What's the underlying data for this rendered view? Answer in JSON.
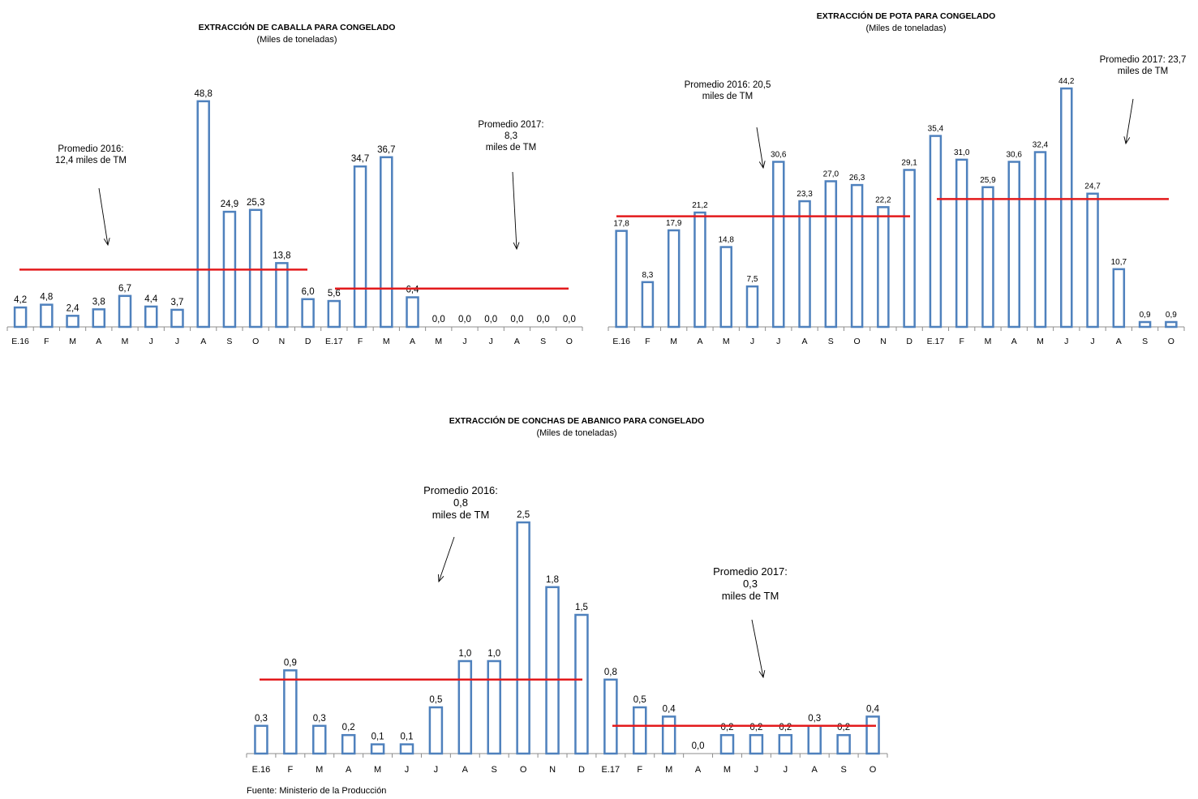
{
  "chart_data": [
    {
      "type": "bar",
      "title": "EXTRACCIÓN DE CABALLA PARA CONGELADO",
      "subtitle": "(Miles de toneladas)",
      "categories": [
        "E.16",
        "F",
        "M",
        "A",
        "M",
        "J",
        "J",
        "A",
        "S",
        "O",
        "N",
        "D",
        "E.17",
        "F",
        "M",
        "A",
        "M",
        "J",
        "J",
        "A",
        "S",
        "O"
      ],
      "values": [
        4.2,
        4.8,
        2.4,
        3.8,
        6.7,
        4.4,
        3.7,
        48.8,
        24.9,
        25.3,
        13.8,
        6.0,
        5.6,
        34.7,
        36.7,
        6.4,
        0.0,
        0.0,
        0.0,
        0.0,
        0.0,
        0.0
      ],
      "labels": [
        "4,2",
        "4,8",
        "2,4",
        "3,8",
        "6,7",
        "4,4",
        "3,7",
        "48,8",
        "24,9",
        "25,3",
        "13,8",
        "6,0",
        "5,6",
        "34,7",
        "36,7",
        "6,4",
        "0,0",
        "0,0",
        "0,0",
        "0,0",
        "0,0",
        "0,0"
      ],
      "averages": [
        {
          "value": 12.4,
          "from": 0,
          "to": 11,
          "lines": [
            "Promedio 2016:",
            "12,4 miles de TM"
          ]
        },
        {
          "value": 8.3,
          "from": 12,
          "to": 21,
          "lines": [
            "Promedio 2017:",
            "8,3",
            "miles de TM"
          ]
        }
      ],
      "bar_color": "#4f81bd",
      "average_color": "#e31a1c",
      "grid": false
    },
    {
      "type": "bar",
      "title": "EXTRACCIÓN DE POTA PARA CONGELADO",
      "subtitle": "(Miles de toneladas)",
      "categories": [
        "E.16",
        "F",
        "M",
        "A",
        "M",
        "J",
        "J",
        "A",
        "S",
        "O",
        "N",
        "D",
        "E.17",
        "F",
        "M",
        "A",
        "M",
        "J",
        "J",
        "A",
        "S",
        "O"
      ],
      "values": [
        17.8,
        8.3,
        17.9,
        21.2,
        14.8,
        7.5,
        30.6,
        23.3,
        27.0,
        26.3,
        22.2,
        29.1,
        35.4,
        31.0,
        25.9,
        30.6,
        32.4,
        44.2,
        24.7,
        10.7,
        0.9,
        0.9
      ],
      "labels": [
        "17,8",
        "8,3",
        "17,9",
        "21,2",
        "14,8",
        "7,5",
        "30,6",
        "23,3",
        "27,0",
        "26,3",
        "22,2",
        "29,1",
        "35,4",
        "31,0",
        "25,9",
        "30,6",
        "32,4",
        "44,2",
        "24,7",
        "10,7",
        "0,9",
        "0,9"
      ],
      "averages": [
        {
          "value": 20.5,
          "from": 0,
          "to": 11,
          "lines": [
            "Promedio 2016: 20,5",
            "miles de TM"
          ]
        },
        {
          "value": 23.7,
          "from": 12,
          "to": 21,
          "lines": [
            "Promedio 2017: 23,7",
            "miles de TM"
          ]
        }
      ],
      "bar_color": "#4f81bd",
      "average_color": "#e31a1c",
      "grid": false
    },
    {
      "type": "bar",
      "title": "EXTRACCIÓN DE CONCHAS DE ABANICO PARA CONGELADO",
      "subtitle": "(Miles de toneladas)",
      "categories": [
        "E.16",
        "F",
        "M",
        "A",
        "M",
        "J",
        "J",
        "A",
        "S",
        "O",
        "N",
        "D",
        "E.17",
        "F",
        "M",
        "A",
        "M",
        "J",
        "J",
        "A",
        "S",
        "O"
      ],
      "values": [
        0.3,
        0.9,
        0.3,
        0.2,
        0.1,
        0.1,
        0.5,
        1.0,
        1.0,
        2.5,
        1.8,
        1.5,
        0.8,
        0.5,
        0.4,
        0.0,
        0.2,
        0.2,
        0.2,
        0.3,
        0.2,
        0.4
      ],
      "labels": [
        "0,3",
        "0,9",
        "0,3",
        "0,2",
        "0,1",
        "0,1",
        "0,5",
        "1,0",
        "1,0",
        "2,5",
        "1,8",
        "1,5",
        "0,8",
        "0,5",
        "0,4",
        "0,0",
        "0,2",
        "0,2",
        "0,2",
        "0,3",
        "0,2",
        "0,4"
      ],
      "averages": [
        {
          "value": 0.8,
          "from": 0,
          "to": 11,
          "lines": [
            "Promedio 2016:",
            "0,8",
            "miles de TM"
          ]
        },
        {
          "value": 0.3,
          "from": 12,
          "to": 21,
          "lines": [
            "Promedio 2017:",
            "0,3",
            "miles de TM"
          ]
        }
      ],
      "bar_color": "#4f81bd",
      "average_color": "#e31a1c",
      "grid": false
    }
  ],
  "footer": {
    "source": "Fuente: Ministerio de la Producción"
  }
}
